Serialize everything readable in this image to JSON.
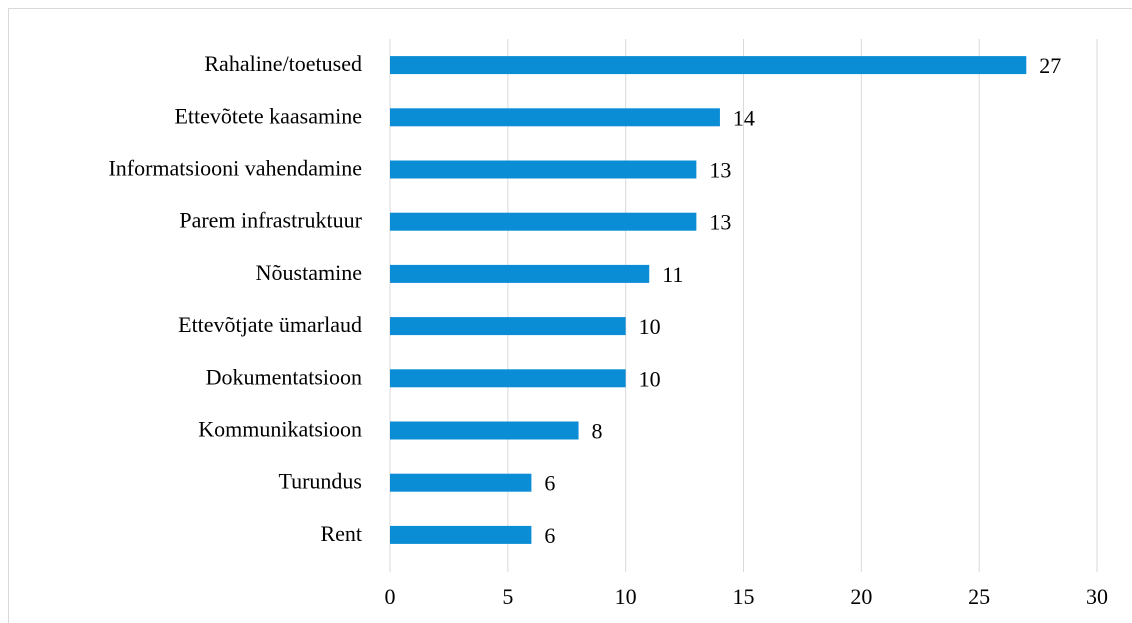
{
  "chart_data": {
    "type": "bar",
    "orientation": "horizontal",
    "categories": [
      "Rahaline/toetused",
      "Ettevõtete kaasamine",
      "Informatsiooni vahendamine",
      "Parem infrastruktuur",
      "Nõustamine",
      "Ettevõtjate ümarlaud",
      "Dokumentatsioon",
      "Kommunikatsioon",
      "Turundus",
      "Rent"
    ],
    "values": [
      27,
      14,
      13,
      13,
      11,
      10,
      10,
      8,
      6,
      6
    ],
    "color": "#0b8dd6",
    "xlim": [
      0,
      30
    ],
    "xticks": [
      0,
      5,
      10,
      15,
      20,
      25,
      30
    ],
    "grid": true
  }
}
